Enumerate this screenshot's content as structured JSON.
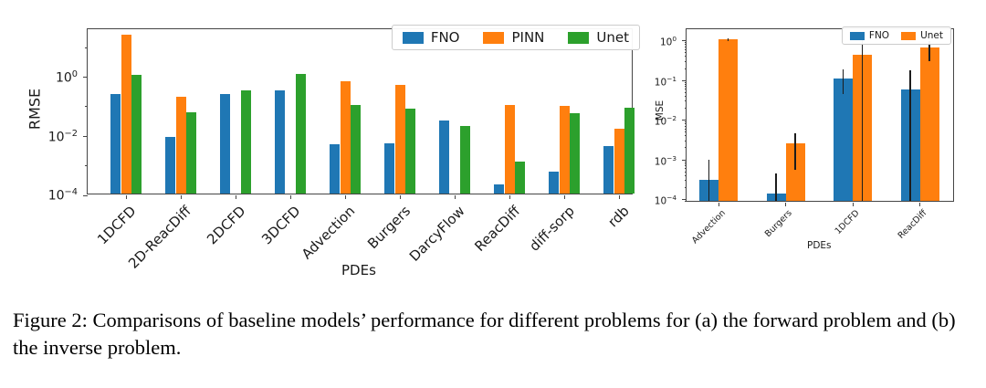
{
  "figure": {
    "caption": "Figure 2: Comparisons of baseline models’ performance for different problems for (a) the forward problem and (b) the inverse problem."
  },
  "colors": {
    "fno_blue": "#1f77b4",
    "pinn_orange": "#ff7f0e",
    "unet_green": "#2ca02c",
    "error_bar": "#1c1c1c",
    "axis": "#454545"
  },
  "chart_data": [
    {
      "id": "forward",
      "type": "bar",
      "yscale": "log",
      "xlabel": "PDEs",
      "ylabel": "RMSE",
      "ylim": [
        0.0001,
        42
      ],
      "ytick_exponents": [
        0,
        -2,
        -4
      ],
      "minor_tick_exponents": [
        1,
        -1,
        -3
      ],
      "legend_position": "upper right",
      "legend_labels": [
        "FNO",
        "PINN",
        "Unet"
      ],
      "categories": [
        "1DCFD",
        "2D-ReacDiff",
        "2DCFD",
        "3DCFD",
        "Advection",
        "Burgers",
        "DarcyFlow",
        "ReacDiff",
        "diff-sorp",
        "rdb"
      ],
      "series": [
        {
          "name": "FNO",
          "color": "#1f77b4",
          "values": [
            0.23,
            0.008,
            0.23,
            0.3,
            0.0046,
            0.0049,
            0.029,
            0.0002,
            0.00055,
            0.0041
          ]
        },
        {
          "name": "PINN",
          "color": "#ff7f0e",
          "values": [
            23,
            0.19,
            null,
            null,
            0.65,
            0.49,
            null,
            0.1,
            0.09,
            0.016
          ]
        },
        {
          "name": "Unet",
          "color": "#2ca02c",
          "values": [
            1.05,
            0.058,
            0.3,
            1.1,
            0.099,
            0.074,
            0.019,
            0.0012,
            0.052,
            0.078
          ]
        }
      ]
    },
    {
      "id": "inverse",
      "type": "bar",
      "yscale": "log",
      "xlabel": "PDEs",
      "ylabel": "MSE",
      "ylim": [
        8.32e-05,
        1.95
      ],
      "ytick_exponents": [
        0,
        -1,
        -2,
        -3,
        -4
      ],
      "minor_tick_exponents": [],
      "log_sub_minors": true,
      "legend_position": "upper right",
      "legend_labels": [
        "FNO",
        "Unet"
      ],
      "categories": [
        "Advection",
        "Burgers",
        "1DCFD",
        "ReacDiff"
      ],
      "series": [
        {
          "name": "FNO",
          "color": "#1f77b4",
          "values": [
            0.00028,
            0.00013,
            0.1,
            0.052
          ],
          "err_lo": [
            8.32e-05,
            8.32e-05,
            0.04,
            8.32e-05
          ],
          "err_hi": [
            0.0009,
            0.0004,
            0.17,
            0.16
          ]
        },
        {
          "name": "Unet",
          "color": "#ff7f0e",
          "values": [
            0.97,
            0.0024,
            0.4,
            0.61
          ],
          "err_lo": [
            0.9,
            0.0005,
            8.32e-05,
            0.27
          ],
          "err_hi": [
            1.05,
            0.0043,
            1.5,
            0.87
          ]
        }
      ]
    }
  ]
}
